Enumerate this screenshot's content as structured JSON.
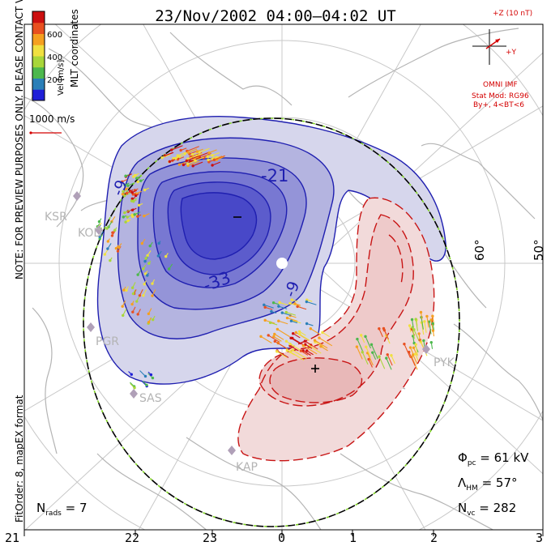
{
  "title": "23/Nov/2002 04:00–04:02 UT",
  "note_preview": "NOTE: FOR PREVIEW PURPOSES ONLY. PLEASE CONTACT VT-SD STAFF FOR VERIFICATION.",
  "note_fit": "FitOrder: 8, mapEX format",
  "colorbar": {
    "label": "Vel [m/s]",
    "ticks": [
      "600",
      "400",
      "200"
    ],
    "coords": "MLT coordinates",
    "colors": [
      "#1f1fd8",
      "#2a7fb8",
      "#4db84d",
      "#a8d63a",
      "#f0e040",
      "#f5a020",
      "#e85020",
      "#cc1010"
    ]
  },
  "scale_label": "1000 m/s",
  "imf": {
    "axis_z": "+Z (10 nT)",
    "axis_y": "+Y",
    "source": "OMNI IMF",
    "stat_mod": "Stat Mod: RG96",
    "condition": "By+, 4<BT<6"
  },
  "contours": {
    "labels": [
      "-21",
      "-9",
      "-33",
      "-9"
    ],
    "minimum_marker": "−",
    "maximum_marker": "+",
    "negative_color": "#1f1fb0",
    "positive_color": "#c81414"
  },
  "latitude_labels": [
    "60°",
    "50°"
  ],
  "radars": [
    "KSR",
    "KOD",
    "PGR",
    "SAS",
    "KAP",
    "PYK"
  ],
  "stats": {
    "phi_symbol": "Φ",
    "phi_sub": "pc",
    "phi_value": "= 61 kV",
    "lambda_symbol": "Λ",
    "lambda_sub": "HM",
    "lambda_value": "= 57°",
    "nvc_label": "N",
    "nvc_sub": "vc",
    "nvc_value": "= 282",
    "nrads_label": "N",
    "nrads_sub": "rads",
    "nrads_value": "= 7"
  },
  "mlt_axis": [
    "21",
    "22",
    "23",
    "0",
    "1",
    "2",
    "3"
  ]
}
